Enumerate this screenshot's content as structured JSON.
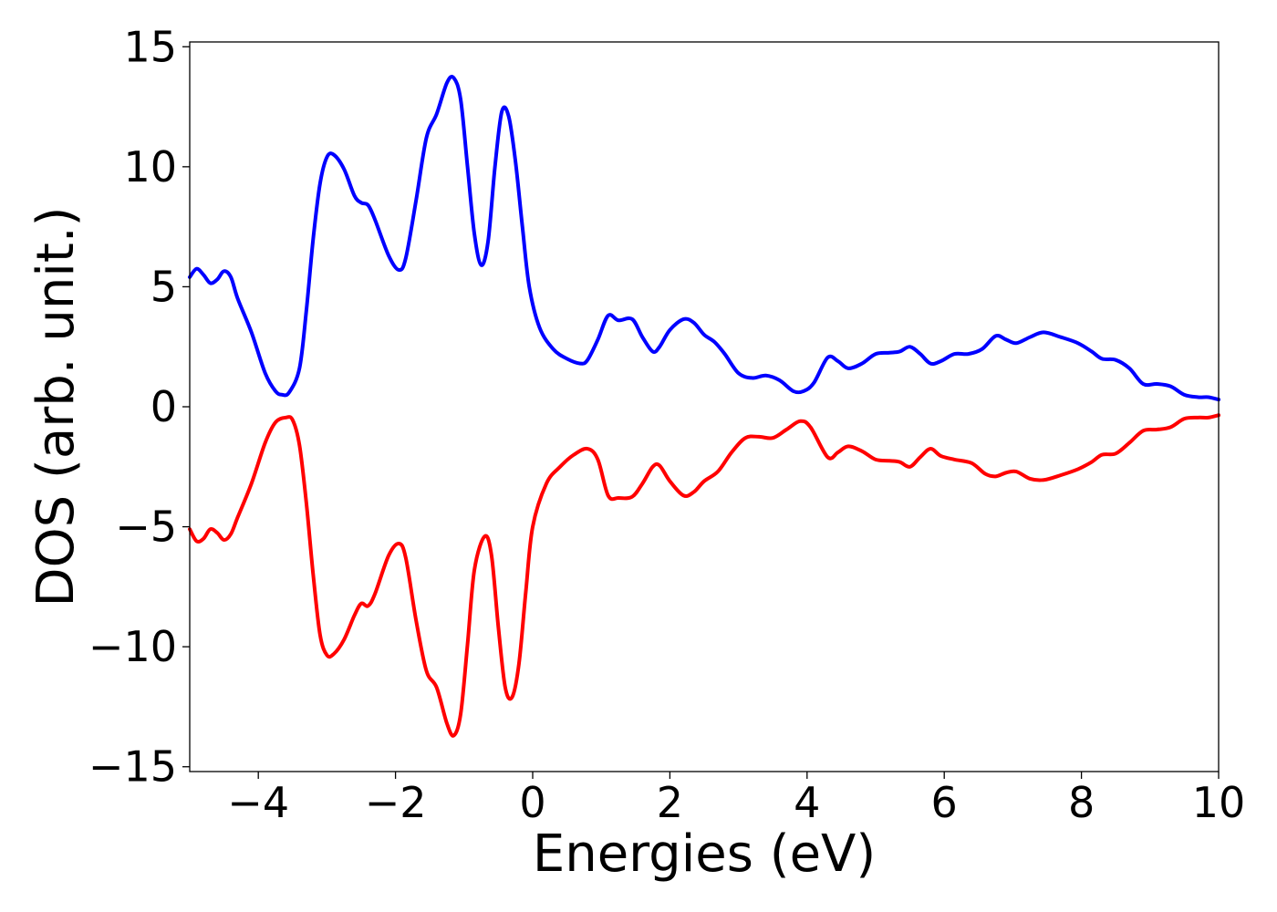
{
  "chart_data": {
    "type": "line",
    "title": "",
    "xlabel": "Energies (eV)",
    "ylabel": "DOS (arb. unit.)",
    "xlim": [
      -5,
      10
    ],
    "ylim": [
      -15.2,
      15.2
    ],
    "grid": false,
    "legend": "none",
    "x_ticks": [
      -4,
      -2,
      0,
      2,
      4,
      6,
      8,
      10
    ],
    "x_tick_labels": [
      "−4",
      "−2",
      "0",
      "2",
      "4",
      "6",
      "8",
      "10"
    ],
    "y_ticks": [
      -15,
      -10,
      -5,
      0,
      5,
      10,
      15
    ],
    "y_tick_labels": [
      "−15",
      "−10",
      "−5",
      "0",
      "5",
      "10",
      "15"
    ],
    "series": [
      {
        "color": "#0000ff",
        "points": [
          [
            -5.0,
            5.4
          ],
          [
            -4.9,
            5.75
          ],
          [
            -4.8,
            5.5
          ],
          [
            -4.7,
            5.15
          ],
          [
            -4.6,
            5.3
          ],
          [
            -4.5,
            5.65
          ],
          [
            -4.4,
            5.4
          ],
          [
            -4.3,
            4.5
          ],
          [
            -4.1,
            3.1
          ],
          [
            -3.9,
            1.4
          ],
          [
            -3.75,
            0.65
          ],
          [
            -3.65,
            0.5
          ],
          [
            -3.55,
            0.6
          ],
          [
            -3.4,
            1.6
          ],
          [
            -3.3,
            4.0
          ],
          [
            -3.2,
            7.0
          ],
          [
            -3.1,
            9.3
          ],
          [
            -3.0,
            10.4
          ],
          [
            -2.9,
            10.5
          ],
          [
            -2.75,
            9.9
          ],
          [
            -2.6,
            8.8
          ],
          [
            -2.5,
            8.5
          ],
          [
            -2.4,
            8.4
          ],
          [
            -2.3,
            7.8
          ],
          [
            -2.1,
            6.3
          ],
          [
            -1.95,
            5.7
          ],
          [
            -1.85,
            6.2
          ],
          [
            -1.7,
            8.6
          ],
          [
            -1.55,
            11.2
          ],
          [
            -1.4,
            12.2
          ],
          [
            -1.25,
            13.5
          ],
          [
            -1.15,
            13.7
          ],
          [
            -1.05,
            12.8
          ],
          [
            -0.95,
            10.0
          ],
          [
            -0.85,
            7.2
          ],
          [
            -0.75,
            5.9
          ],
          [
            -0.65,
            6.9
          ],
          [
            -0.55,
            10.0
          ],
          [
            -0.45,
            12.3
          ],
          [
            -0.35,
            12.1
          ],
          [
            -0.25,
            10.2
          ],
          [
            -0.15,
            7.5
          ],
          [
            -0.05,
            5.0
          ],
          [
            0.1,
            3.3
          ],
          [
            0.3,
            2.4
          ],
          [
            0.5,
            2.0
          ],
          [
            0.7,
            1.8
          ],
          [
            0.8,
            1.95
          ],
          [
            0.95,
            2.8
          ],
          [
            1.1,
            3.8
          ],
          [
            1.25,
            3.6
          ],
          [
            1.45,
            3.65
          ],
          [
            1.6,
            2.9
          ],
          [
            1.75,
            2.3
          ],
          [
            1.85,
            2.5
          ],
          [
            2.0,
            3.2
          ],
          [
            2.2,
            3.65
          ],
          [
            2.35,
            3.5
          ],
          [
            2.5,
            3.0
          ],
          [
            2.65,
            2.7
          ],
          [
            2.8,
            2.2
          ],
          [
            3.0,
            1.4
          ],
          [
            3.2,
            1.2
          ],
          [
            3.4,
            1.3
          ],
          [
            3.6,
            1.1
          ],
          [
            3.8,
            0.65
          ],
          [
            3.95,
            0.65
          ],
          [
            4.1,
            1.0
          ],
          [
            4.3,
            2.05
          ],
          [
            4.45,
            1.9
          ],
          [
            4.6,
            1.6
          ],
          [
            4.8,
            1.8
          ],
          [
            5.0,
            2.2
          ],
          [
            5.2,
            2.25
          ],
          [
            5.35,
            2.3
          ],
          [
            5.5,
            2.5
          ],
          [
            5.65,
            2.2
          ],
          [
            5.8,
            1.8
          ],
          [
            5.95,
            1.9
          ],
          [
            6.15,
            2.2
          ],
          [
            6.35,
            2.2
          ],
          [
            6.55,
            2.4
          ],
          [
            6.75,
            2.95
          ],
          [
            6.9,
            2.8
          ],
          [
            7.05,
            2.65
          ],
          [
            7.25,
            2.9
          ],
          [
            7.45,
            3.1
          ],
          [
            7.7,
            2.9
          ],
          [
            7.95,
            2.65
          ],
          [
            8.15,
            2.3
          ],
          [
            8.3,
            2.0
          ],
          [
            8.5,
            1.95
          ],
          [
            8.7,
            1.6
          ],
          [
            8.9,
            0.95
          ],
          [
            9.1,
            0.95
          ],
          [
            9.3,
            0.85
          ],
          [
            9.5,
            0.5
          ],
          [
            9.7,
            0.4
          ],
          [
            9.85,
            0.4
          ],
          [
            10.0,
            0.3
          ]
        ]
      },
      {
        "color": "#ff0000",
        "points": [
          [
            -5.0,
            -5.1
          ],
          [
            -4.9,
            -5.6
          ],
          [
            -4.8,
            -5.5
          ],
          [
            -4.7,
            -5.1
          ],
          [
            -4.6,
            -5.25
          ],
          [
            -4.5,
            -5.55
          ],
          [
            -4.4,
            -5.3
          ],
          [
            -4.3,
            -4.6
          ],
          [
            -4.1,
            -3.2
          ],
          [
            -3.9,
            -1.5
          ],
          [
            -3.75,
            -0.65
          ],
          [
            -3.6,
            -0.45
          ],
          [
            -3.5,
            -0.55
          ],
          [
            -3.4,
            -1.6
          ],
          [
            -3.3,
            -4.0
          ],
          [
            -3.2,
            -7.0
          ],
          [
            -3.1,
            -9.5
          ],
          [
            -3.0,
            -10.35
          ],
          [
            -2.9,
            -10.3
          ],
          [
            -2.75,
            -9.7
          ],
          [
            -2.6,
            -8.7
          ],
          [
            -2.5,
            -8.2
          ],
          [
            -2.4,
            -8.3
          ],
          [
            -2.3,
            -7.8
          ],
          [
            -2.1,
            -6.2
          ],
          [
            -1.95,
            -5.7
          ],
          [
            -1.85,
            -6.3
          ],
          [
            -1.7,
            -8.9
          ],
          [
            -1.55,
            -11.0
          ],
          [
            -1.4,
            -11.7
          ],
          [
            -1.25,
            -13.2
          ],
          [
            -1.15,
            -13.7
          ],
          [
            -1.05,
            -12.8
          ],
          [
            -0.95,
            -9.9
          ],
          [
            -0.85,
            -6.8
          ],
          [
            -0.7,
            -5.4
          ],
          [
            -0.6,
            -6.2
          ],
          [
            -0.5,
            -9.2
          ],
          [
            -0.4,
            -11.7
          ],
          [
            -0.3,
            -12.1
          ],
          [
            -0.2,
            -10.7
          ],
          [
            -0.1,
            -7.7
          ],
          [
            0.0,
            -5.0
          ],
          [
            0.2,
            -3.2
          ],
          [
            0.4,
            -2.5
          ],
          [
            0.6,
            -2.0
          ],
          [
            0.8,
            -1.75
          ],
          [
            0.95,
            -2.2
          ],
          [
            1.1,
            -3.7
          ],
          [
            1.25,
            -3.8
          ],
          [
            1.45,
            -3.75
          ],
          [
            1.6,
            -3.2
          ],
          [
            1.75,
            -2.5
          ],
          [
            1.85,
            -2.45
          ],
          [
            2.0,
            -3.1
          ],
          [
            2.2,
            -3.7
          ],
          [
            2.35,
            -3.55
          ],
          [
            2.5,
            -3.1
          ],
          [
            2.7,
            -2.7
          ],
          [
            2.9,
            -1.9
          ],
          [
            3.1,
            -1.3
          ],
          [
            3.3,
            -1.25
          ],
          [
            3.5,
            -1.3
          ],
          [
            3.7,
            -0.95
          ],
          [
            3.9,
            -0.6
          ],
          [
            4.05,
            -0.85
          ],
          [
            4.3,
            -2.1
          ],
          [
            4.45,
            -1.9
          ],
          [
            4.6,
            -1.65
          ],
          [
            4.8,
            -1.85
          ],
          [
            5.0,
            -2.2
          ],
          [
            5.2,
            -2.25
          ],
          [
            5.35,
            -2.3
          ],
          [
            5.5,
            -2.5
          ],
          [
            5.65,
            -2.1
          ],
          [
            5.8,
            -1.75
          ],
          [
            5.95,
            -2.05
          ],
          [
            6.15,
            -2.2
          ],
          [
            6.4,
            -2.35
          ],
          [
            6.6,
            -2.8
          ],
          [
            6.75,
            -2.9
          ],
          [
            6.9,
            -2.75
          ],
          [
            7.05,
            -2.7
          ],
          [
            7.25,
            -3.0
          ],
          [
            7.45,
            -3.05
          ],
          [
            7.7,
            -2.85
          ],
          [
            7.95,
            -2.6
          ],
          [
            8.15,
            -2.3
          ],
          [
            8.3,
            -2.0
          ],
          [
            8.5,
            -1.95
          ],
          [
            8.7,
            -1.5
          ],
          [
            8.9,
            -1.0
          ],
          [
            9.1,
            -0.95
          ],
          [
            9.3,
            -0.85
          ],
          [
            9.5,
            -0.5
          ],
          [
            9.7,
            -0.45
          ],
          [
            9.85,
            -0.45
          ],
          [
            10.0,
            -0.35
          ]
        ]
      }
    ]
  }
}
